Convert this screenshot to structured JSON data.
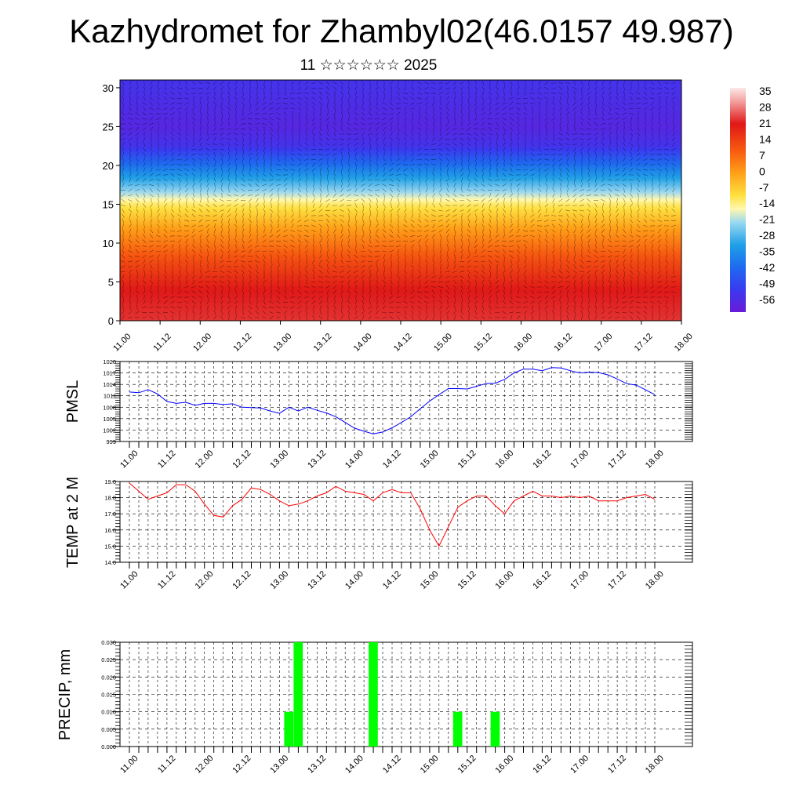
{
  "title": "Kazhydromet for Zhambyl02(46.0157 49.987)",
  "subtitle": "11 ☆☆☆☆☆☆ 2025",
  "time_ticks": [
    "11.00",
    "11.12",
    "12.00",
    "12.12",
    "13.00",
    "13.12",
    "14.00",
    "14.12",
    "15.00",
    "15.12",
    "16.00",
    "16.12",
    "17.00",
    "17.12",
    "18.00"
  ],
  "chart_data": [
    {
      "type": "heatmap",
      "title": "",
      "ylim": [
        0,
        31
      ],
      "yticks": [
        "0",
        "5",
        "10",
        "15",
        "20",
        "25",
        "30"
      ],
      "colorbar": {
        "labels": [
          "35",
          "28",
          "21",
          "14",
          "7",
          "0",
          "-7",
          "-14",
          "-21",
          "-28",
          "-35",
          "-42",
          "-49",
          "-56"
        ],
        "range": [
          -60,
          38
        ]
      },
      "profile": [
        {
          "level": 0,
          "value": 26
        },
        {
          "level": 4,
          "value": 24
        },
        {
          "level": 8,
          "value": 14
        },
        {
          "level": 12,
          "value": 2
        },
        {
          "level": 15,
          "value": -10
        },
        {
          "level": 17,
          "value": -22
        },
        {
          "level": 19,
          "value": -33
        },
        {
          "level": 21,
          "value": -44
        },
        {
          "level": 22.5,
          "value": -52
        },
        {
          "level": 25,
          "value": -56
        },
        {
          "level": 28,
          "value": -54
        },
        {
          "level": 31,
          "value": -52
        }
      ]
    },
    {
      "type": "line",
      "ylabel": "PMSL",
      "ylim": [
        999,
        1020
      ],
      "yticks": [
        "1020",
        "1017",
        "1014",
        "1011",
        "1008",
        "1005",
        "1002",
        "999"
      ],
      "series": [
        {
          "color": "#0000ff",
          "values": [
            1012,
            1011.8,
            1012.6,
            1011.5,
            1009.5,
            1009,
            1009.3,
            1008.5,
            1009,
            1009,
            1008.7,
            1008.9,
            1008,
            1007.9,
            1007.8,
            1007,
            1006.4,
            1008,
            1007,
            1008,
            1007.2,
            1006.5,
            1005.5,
            1004,
            1002.5,
            1001.7,
            1001,
            1001.5,
            1002.6,
            1004,
            1005.5,
            1007.6,
            1009.6,
            1011.3,
            1012.9,
            1012.9,
            1012.8,
            1013.5,
            1014.2,
            1014.3,
            1015.3,
            1017,
            1018,
            1018,
            1017.6,
            1018.4,
            1018.3,
            1017.6,
            1017,
            1017.2,
            1017.1,
            1016.5,
            1015.4,
            1014.2,
            1013.8,
            1012.6,
            1011.3
          ]
        }
      ]
    },
    {
      "type": "line",
      "ylabel": "TEMP at 2 M",
      "ylim": [
        14.0,
        19.0
      ],
      "yticks": [
        "19.0",
        "18.0",
        "17.0",
        "16.0",
        "15.0",
        "14.0"
      ],
      "series": [
        {
          "color": "#ff0000",
          "values": [
            18.9,
            18.4,
            17.9,
            18.1,
            18.3,
            18.8,
            18.8,
            18.4,
            17.6,
            16.9,
            16.8,
            17.5,
            17.9,
            18.6,
            18.5,
            18.2,
            17.8,
            17.5,
            17.6,
            17.8,
            18.1,
            18.3,
            18.7,
            18.4,
            18.3,
            18.2,
            17.8,
            18.3,
            18.5,
            18.3,
            18.3,
            17.3,
            16.0,
            15.0,
            16.2,
            17.4,
            17.8,
            18.1,
            18.1,
            17.5,
            17.0,
            17.8,
            18.1,
            18.4,
            18.1,
            18.1,
            18.0,
            18.1,
            18.0,
            18.1,
            17.8,
            17.8,
            17.8,
            18.0,
            18.1,
            18.2,
            17.9
          ]
        }
      ]
    },
    {
      "type": "bar",
      "ylabel": "PRECIP, mm",
      "ylim": [
        0.0,
        0.03
      ],
      "yticks": [
        "0.030",
        "0.025",
        "0.020",
        "0.015",
        "0.010",
        "0.005",
        "0.000"
      ],
      "bars": [
        {
          "time_index": 17,
          "value": 0.01
        },
        {
          "time_index": 18,
          "value": 0.03
        },
        {
          "time_index": 26,
          "value": 0.03
        },
        {
          "time_index": 35,
          "value": 0.01
        },
        {
          "time_index": 39,
          "value": 0.01
        }
      ],
      "bar_color": "#00ff00"
    }
  ]
}
